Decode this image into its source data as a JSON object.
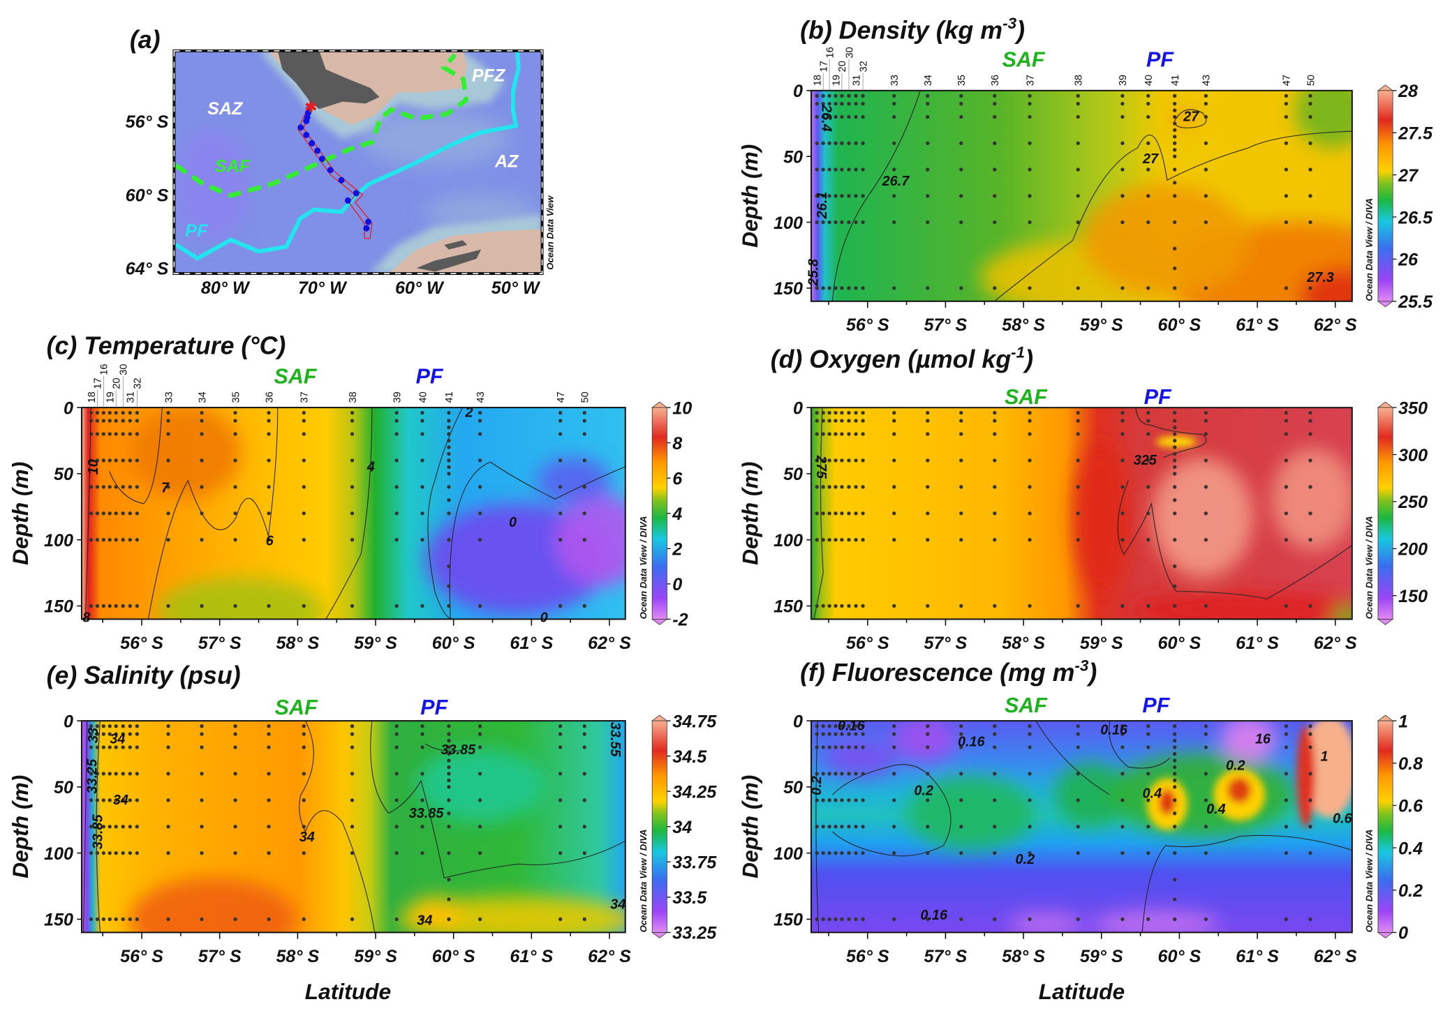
{
  "colors": {
    "saf": "#1db31d",
    "pf": "#1414e6",
    "map_saf": "#33ee33",
    "map_pf": "#22e5ee",
    "track": "#e02020",
    "station_dot": "#1010e0"
  },
  "map": {
    "label": "(a)",
    "lat_ticks": [
      "56° S",
      "60° S",
      "64° S"
    ],
    "lon_ticks": [
      "80° W",
      "70° W",
      "60° W",
      "50° W"
    ],
    "zones": {
      "saz": "SAZ",
      "saf": "SAF",
      "pf": "PF",
      "pfz": "PFZ",
      "az": "AZ"
    },
    "credit": "Ocean Data View"
  },
  "common": {
    "depth_label": "Depth (m)",
    "lat_label": "Latitude",
    "depth_ticks": [
      0,
      50,
      100,
      150
    ],
    "lat_ticks": [
      "56° S",
      "57° S",
      "58° S",
      "59° S",
      "60° S",
      "61° S",
      "62° S"
    ],
    "credit": "Ocean Data View / DIVA",
    "saf": "SAF",
    "pf": "PF"
  },
  "chart_data": [
    {
      "type": "heatmap",
      "panel": "b",
      "title": {
        "prefix": "(b) Density (kg m",
        "sup": "-3",
        "suffix": ")"
      },
      "xlabel": "",
      "ylabel": "Depth (m)",
      "xlim": [
        55.28,
        62.22
      ],
      "ylim": [
        160,
        0
      ],
      "colorbar": {
        "range": [
          25.5,
          28
        ],
        "ticks": [
          "28",
          "27.5",
          "27",
          "26.5",
          "26",
          "25.5"
        ]
      },
      "fronts": [
        {
          "name": "SAF",
          "lat": 58.0
        },
        {
          "name": "PF",
          "lat": 59.75
        }
      ],
      "stations": [
        {
          "id": "18",
          "lat": 55.35
        },
        {
          "id": "17",
          "lat": 55.43
        },
        {
          "id": "16",
          "lat": 55.51
        },
        {
          "id": "19",
          "lat": 55.59
        },
        {
          "id": "20",
          "lat": 55.67
        },
        {
          "id": "30",
          "lat": 55.76
        },
        {
          "id": "31",
          "lat": 55.85
        },
        {
          "id": "32",
          "lat": 55.94
        },
        {
          "id": "33",
          "lat": 56.34
        },
        {
          "id": "34",
          "lat": 56.77
        },
        {
          "id": "35",
          "lat": 57.2
        },
        {
          "id": "36",
          "lat": 57.63
        },
        {
          "id": "37",
          "lat": 58.08
        },
        {
          "id": "38",
          "lat": 58.7
        },
        {
          "id": "39",
          "lat": 59.27
        },
        {
          "id": "40",
          "lat": 59.6
        },
        {
          "id": "41",
          "lat": 59.94
        },
        {
          "id": "43",
          "lat": 60.34
        },
        {
          "id": "47",
          "lat": 61.37
        },
        {
          "id": "50",
          "lat": 61.68
        }
      ],
      "sample_depths": [
        4,
        10,
        20,
        40,
        60,
        80,
        100,
        150
      ],
      "contour_labels": [
        {
          "text": "26.4",
          "lat": 55.47,
          "depth": 21
        },
        {
          "text": "26.7",
          "lat": 56.36,
          "depth": 69
        },
        {
          "text": "26.1",
          "lat": 55.42,
          "depth": 87
        },
        {
          "text": "27",
          "lat": 60.15,
          "depth": 20
        },
        {
          "text": "27",
          "lat": 59.63,
          "depth": 52
        },
        {
          "text": "27.3",
          "lat": 61.81,
          "depth": 142
        },
        {
          "text": "25.8",
          "lat": 55.31,
          "depth": 138
        }
      ]
    },
    {
      "type": "heatmap",
      "panel": "c",
      "title": {
        "prefix": "(c) Temperature (°C)",
        "sup": "",
        "suffix": ""
      },
      "xlabel": "",
      "ylabel": "Depth (m)",
      "xlim": [
        55.23,
        62.2
      ],
      "ylim": [
        160,
        0
      ],
      "colorbar": {
        "range": [
          -2,
          10
        ],
        "ticks": [
          "10",
          "8",
          "6",
          "4",
          "2",
          "0",
          "-2"
        ]
      },
      "fronts": [
        {
          "name": "SAF",
          "lat": 57.97
        },
        {
          "name": "PF",
          "lat": 59.69
        }
      ],
      "show_stations": true,
      "contour_labels": [
        {
          "text": "10",
          "lat": 55.38,
          "depth": 45
        },
        {
          "text": "7",
          "lat": 56.3,
          "depth": 61
        },
        {
          "text": "6",
          "lat": 57.64,
          "depth": 101
        },
        {
          "text": "4",
          "lat": 58.94,
          "depth": 45
        },
        {
          "text": "0",
          "lat": 60.76,
          "depth": 87
        },
        {
          "text": "2",
          "lat": 60.2,
          "depth": 4
        },
        {
          "text": "0",
          "lat": 61.16,
          "depth": 159
        },
        {
          "text": "8",
          "lat": 55.29,
          "depth": 159
        }
      ]
    },
    {
      "type": "heatmap",
      "panel": "d",
      "title": {
        "prefix": "(d) Oxygen (µmol kg",
        "sup": "-1",
        "suffix": ")"
      },
      "xlabel": "",
      "ylabel": "Depth (m)",
      "xlim": [
        55.28,
        62.22
      ],
      "ylim": [
        160,
        0
      ],
      "colorbar": {
        "range": [
          125,
          350
        ],
        "ticks": [
          "350",
          "300",
          "250",
          "200",
          "150"
        ]
      },
      "fronts": [
        {
          "name": "SAF",
          "lat": 58.03
        },
        {
          "name": "PF",
          "lat": 59.72
        }
      ],
      "contour_labels": [
        {
          "text": "275",
          "lat": 55.4,
          "depth": 45
        },
        {
          "text": "325",
          "lat": 59.56,
          "depth": 40
        }
      ]
    },
    {
      "type": "heatmap",
      "panel": "e",
      "title": {
        "prefix": "(e) Salinity (psu)",
        "sup": "",
        "suffix": ""
      },
      "xlabel": "Latitude",
      "ylabel": "Depth (m)",
      "xlim": [
        55.23,
        62.2
      ],
      "ylim": [
        160,
        0
      ],
      "colorbar": {
        "range": [
          33.25,
          34.75
        ],
        "ticks": [
          "34.75",
          "34.5",
          "34.25",
          "34",
          "33.75",
          "33.5",
          "33.25"
        ]
      },
      "fronts": [
        {
          "name": "SAF",
          "lat": 57.98
        },
        {
          "name": "PF",
          "lat": 59.75
        }
      ],
      "contour_labels": [
        {
          "text": "33",
          "lat": 55.38,
          "depth": 11
        },
        {
          "text": "34",
          "lat": 55.69,
          "depth": 14
        },
        {
          "text": "33.25",
          "lat": 55.37,
          "depth": 42
        },
        {
          "text": "34",
          "lat": 55.73,
          "depth": 60
        },
        {
          "text": "33.85",
          "lat": 55.44,
          "depth": 84
        },
        {
          "text": "34",
          "lat": 58.12,
          "depth": 88
        },
        {
          "text": "33.85",
          "lat": 60.06,
          "depth": 22
        },
        {
          "text": "33.85",
          "lat": 59.65,
          "depth": 70
        },
        {
          "text": "34",
          "lat": 59.63,
          "depth": 151
        },
        {
          "text": "33.55",
          "lat": 62.07,
          "depth": 14
        },
        {
          "text": "34",
          "lat": 62.11,
          "depth": 139
        }
      ]
    },
    {
      "type": "heatmap",
      "panel": "f",
      "title": {
        "prefix": "(f) Fluorescence (mg m",
        "sup": "-3",
        "suffix": ")"
      },
      "xlabel": "Latitude",
      "ylabel": "Depth (m)",
      "xlim": [
        55.28,
        62.22
      ],
      "ylim": [
        160,
        0
      ],
      "colorbar": {
        "range": [
          0,
          1
        ],
        "ticks": [
          "1",
          "0.8",
          "0.6",
          "0.4",
          "0.2",
          "0"
        ]
      },
      "fronts": [
        {
          "name": "SAF",
          "lat": 58.03
        },
        {
          "name": "PF",
          "lat": 59.7
        }
      ],
      "contour_labels": [
        {
          "text": "0.16",
          "lat": 55.79,
          "depth": 4
        },
        {
          "text": "0.16",
          "lat": 57.33,
          "depth": 16
        },
        {
          "text": "0.16",
          "lat": 59.16,
          "depth": 7
        },
        {
          "text": "16",
          "lat": 61.07,
          "depth": 14
        },
        {
          "text": "0.2",
          "lat": 55.35,
          "depth": 49
        },
        {
          "text": "0.2",
          "lat": 56.72,
          "depth": 53
        },
        {
          "text": "0.4",
          "lat": 59.65,
          "depth": 55
        },
        {
          "text": "0.4",
          "lat": 60.47,
          "depth": 67
        },
        {
          "text": "0.2",
          "lat": 58.02,
          "depth": 105
        },
        {
          "text": "0.16",
          "lat": 56.85,
          "depth": 147
        },
        {
          "text": "1",
          "lat": 61.86,
          "depth": 27
        },
        {
          "text": "0.6",
          "lat": 62.09,
          "depth": 74
        },
        {
          "text": "0.2",
          "lat": 60.72,
          "depth": 34
        }
      ]
    }
  ]
}
